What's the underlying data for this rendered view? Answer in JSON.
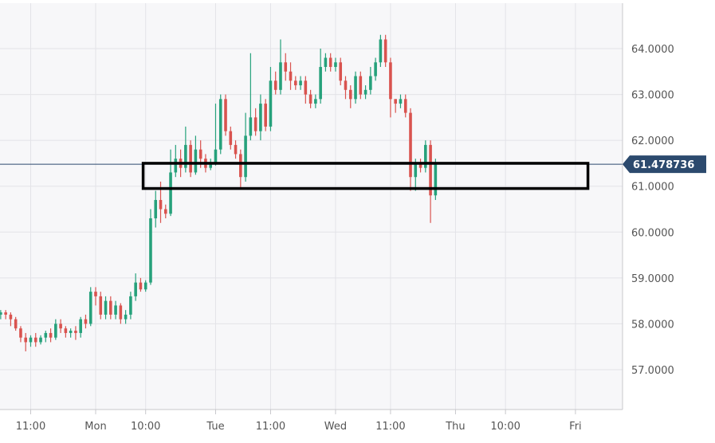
{
  "chart_data": {
    "type": "candlestick",
    "title": "",
    "xlabel": "",
    "ylabel": "",
    "ylim": [
      56.3,
      64.9
    ],
    "y_ticks": [
      "57.0000",
      "58.0000",
      "59.0000",
      "60.0000",
      "61.0000",
      "62.0000",
      "63.0000",
      "64.0000"
    ],
    "x_ticks": [
      "11:00",
      "Mon",
      "10:00",
      "Tue",
      "11:00",
      "Wed",
      "11:00",
      "Thu",
      "10:00",
      "Fri"
    ],
    "x_tick_hours": [
      -13,
      0,
      10,
      24,
      35,
      48,
      59,
      72,
      82,
      96
    ],
    "current_price": 61.478736,
    "current_price_label": "61.478736",
    "highlight_zone": {
      "low": 60.95,
      "high": 61.5,
      "from_hour": 9.5,
      "to_hour": 98.5
    },
    "colors": {
      "up": "#26a17b",
      "down": "#d9534f",
      "background": "#f7f7f9",
      "grid": "#e3e3e8",
      "price_line": "#2c4a6e",
      "price_tag": "#2c4a6e",
      "zone_border": "#000000"
    },
    "grid": true,
    "candle_hours": 1,
    "candles_start_hour": -20,
    "candles": [
      [
        58.3,
        58.2,
        58.35,
        58.1
      ],
      [
        58.2,
        58.25,
        58.3,
        58.1
      ],
      [
        58.25,
        58.2,
        58.3,
        58.1
      ],
      [
        58.2,
        58.1,
        58.25,
        57.95
      ],
      [
        58.1,
        57.9,
        58.15,
        57.85
      ],
      [
        57.9,
        57.7,
        57.95,
        57.6
      ],
      [
        57.7,
        57.6,
        57.8,
        57.4
      ],
      [
        57.6,
        57.7,
        57.75,
        57.5
      ],
      [
        57.7,
        57.6,
        57.8,
        57.5
      ],
      [
        57.6,
        57.7,
        57.75,
        57.55
      ],
      [
        57.7,
        57.8,
        57.85,
        57.6
      ],
      [
        57.8,
        57.7,
        57.9,
        57.6
      ],
      [
        57.7,
        58.0,
        58.1,
        57.65
      ],
      [
        58.0,
        57.9,
        58.1,
        57.8
      ],
      [
        57.9,
        57.8,
        57.95,
        57.7
      ],
      [
        57.8,
        57.85,
        57.9,
        57.7
      ],
      [
        57.85,
        57.8,
        57.95,
        57.65
      ],
      [
        57.8,
        58.1,
        58.15,
        57.7
      ],
      [
        58.1,
        58.0,
        58.2,
        57.9
      ],
      [
        58.0,
        58.7,
        58.8,
        57.95
      ],
      [
        58.7,
        58.6,
        58.8,
        58.4
      ],
      [
        58.6,
        58.2,
        58.7,
        58.1
      ],
      [
        58.2,
        58.5,
        58.6,
        58.1
      ],
      [
        58.5,
        58.2,
        58.6,
        58.1
      ],
      [
        58.2,
        58.4,
        58.5,
        58.1
      ],
      [
        58.4,
        58.1,
        58.45,
        58.0
      ],
      [
        58.1,
        58.2,
        58.3,
        58.0
      ],
      [
        58.2,
        58.6,
        58.7,
        58.1
      ],
      [
        58.6,
        58.9,
        59.1,
        58.5
      ],
      [
        58.9,
        58.75,
        59.0,
        58.7
      ],
      [
        58.75,
        58.9,
        58.95,
        58.7
      ],
      [
        58.9,
        60.3,
        60.5,
        58.85
      ],
      [
        60.3,
        60.7,
        60.9,
        60.1
      ],
      [
        60.7,
        60.5,
        61.1,
        60.2
      ],
      [
        60.5,
        60.4,
        60.6,
        60.3
      ],
      [
        60.4,
        61.3,
        61.8,
        60.35
      ],
      [
        61.3,
        61.6,
        61.9,
        61.2
      ],
      [
        61.6,
        61.4,
        61.8,
        61.2
      ],
      [
        61.4,
        61.9,
        62.3,
        61.3
      ],
      [
        61.9,
        61.3,
        62.0,
        61.2
      ],
      [
        61.3,
        61.8,
        62.1,
        61.25
      ],
      [
        61.8,
        61.6,
        62.0,
        61.4
      ],
      [
        61.6,
        61.4,
        61.7,
        61.3
      ],
      [
        61.4,
        61.5,
        61.6,
        61.35
      ],
      [
        61.5,
        61.8,
        62.8,
        61.45
      ],
      [
        61.8,
        62.9,
        63.0,
        61.7
      ],
      [
        62.9,
        62.2,
        63.0,
        62.1
      ],
      [
        62.2,
        61.9,
        62.3,
        61.8
      ],
      [
        61.9,
        61.7,
        62.0,
        61.6
      ],
      [
        61.7,
        61.2,
        61.8,
        60.95
      ],
      [
        61.2,
        62.1,
        62.6,
        61.1
      ],
      [
        62.1,
        62.5,
        63.9,
        62.0
      ],
      [
        62.5,
        62.2,
        62.7,
        62.1
      ],
      [
        62.2,
        62.8,
        63.0,
        62.0
      ],
      [
        62.8,
        62.3,
        62.9,
        62.2
      ],
      [
        62.3,
        63.3,
        63.6,
        62.2
      ],
      [
        63.3,
        63.1,
        63.5,
        63.0
      ],
      [
        63.1,
        63.7,
        64.2,
        63.0
      ],
      [
        63.7,
        63.5,
        63.9,
        63.3
      ],
      [
        63.5,
        63.3,
        63.7,
        63.1
      ],
      [
        63.3,
        63.2,
        63.4,
        63.1
      ],
      [
        63.2,
        63.3,
        63.4,
        63.1
      ],
      [
        63.3,
        63.0,
        63.4,
        62.8
      ],
      [
        63.0,
        62.8,
        63.1,
        62.7
      ],
      [
        62.8,
        62.9,
        63.0,
        62.7
      ],
      [
        62.9,
        63.6,
        64.0,
        62.8
      ],
      [
        63.6,
        63.8,
        63.9,
        63.5
      ],
      [
        63.8,
        63.6,
        63.9,
        63.5
      ],
      [
        63.6,
        63.7,
        63.8,
        63.5
      ],
      [
        63.7,
        63.3,
        63.8,
        63.2
      ],
      [
        63.3,
        63.1,
        63.4,
        62.9
      ],
      [
        63.1,
        62.9,
        63.2,
        62.7
      ],
      [
        62.9,
        63.4,
        63.5,
        62.8
      ],
      [
        63.4,
        63.0,
        63.5,
        62.9
      ],
      [
        63.0,
        63.1,
        63.2,
        62.9
      ],
      [
        63.1,
        63.4,
        63.6,
        63.0
      ],
      [
        63.4,
        63.7,
        63.8,
        63.3
      ],
      [
        63.7,
        64.2,
        64.3,
        63.6
      ],
      [
        64.2,
        63.7,
        64.3,
        63.6
      ],
      [
        63.7,
        62.9,
        63.8,
        62.5
      ],
      [
        62.9,
        62.8,
        62.9,
        62.6
      ],
      [
        62.8,
        62.9,
        63.0,
        62.7
      ],
      [
        62.9,
        62.6,
        63.0,
        62.5
      ],
      [
        62.6,
        61.2,
        62.7,
        60.9
      ],
      [
        61.2,
        61.5,
        61.6,
        60.9
      ],
      [
        61.5,
        61.4,
        61.6,
        61.3
      ],
      [
        61.4,
        61.9,
        62.0,
        61.3
      ],
      [
        61.9,
        60.8,
        62.0,
        60.2
      ],
      [
        60.8,
        61.48,
        61.6,
        60.7
      ]
    ]
  }
}
